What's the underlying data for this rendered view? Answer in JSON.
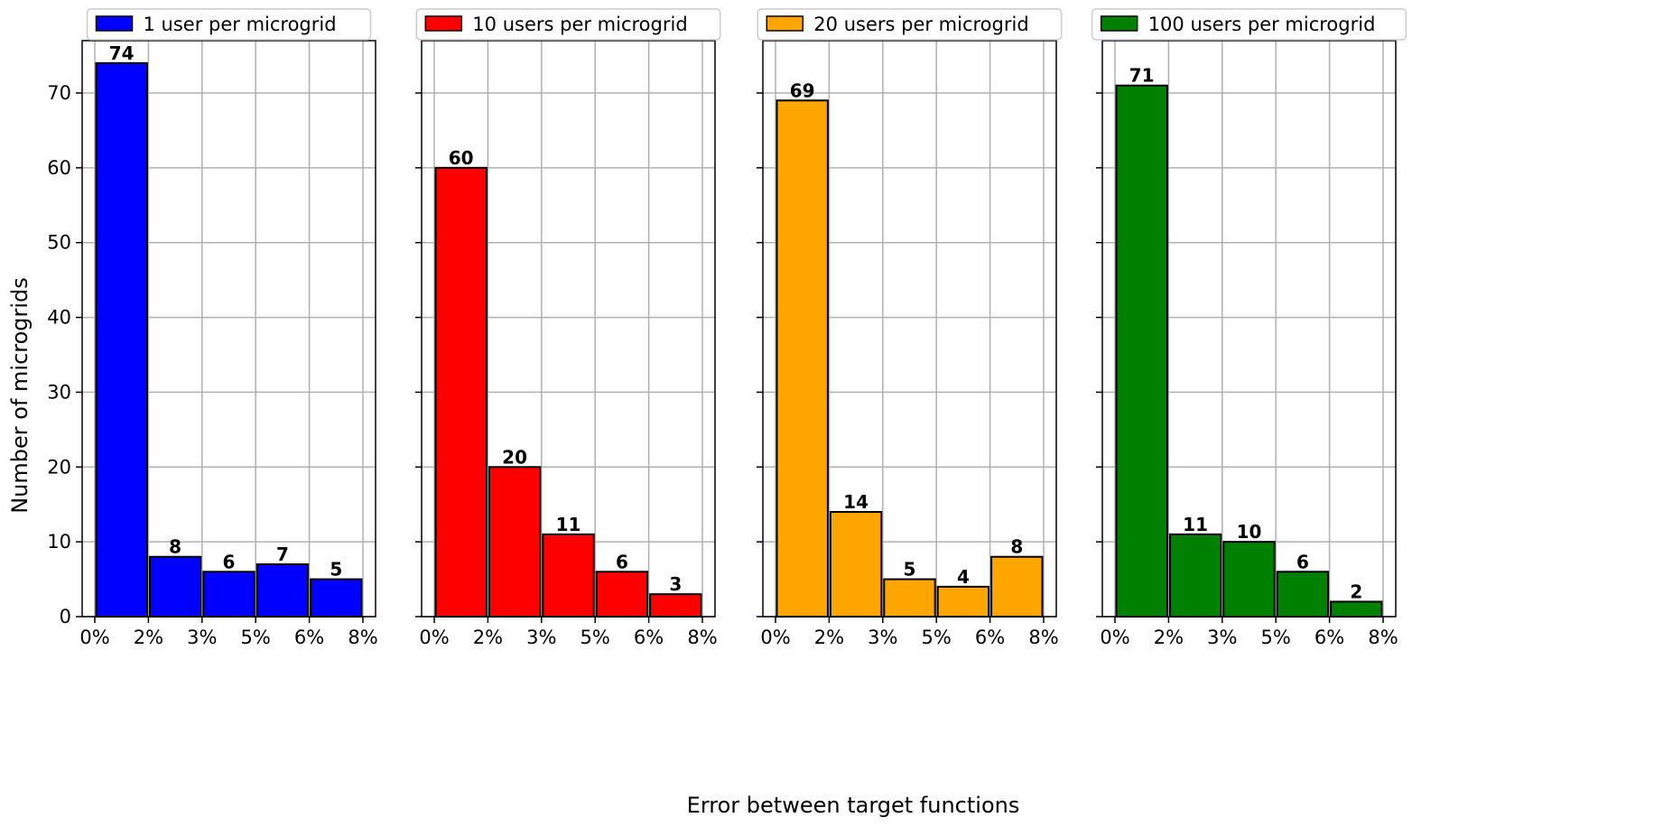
{
  "chart_data": [
    {
      "type": "bar",
      "legend": "1 user per microgrid",
      "color": "#0000FF",
      "categories": [
        "0-1.6%",
        "1.6-3.2%",
        "3.2-4.8%",
        "4.8-6.4%",
        "6.4-8%"
      ],
      "values": [
        74,
        8,
        6,
        7,
        5
      ],
      "xticks": [
        "0%",
        "2%",
        "3%",
        "5%",
        "6%",
        "8%"
      ],
      "ylim": [
        0,
        77
      ],
      "grid": true,
      "legend_position": "top-center"
    },
    {
      "type": "bar",
      "legend": "10 users per microgrid",
      "color": "#FF0000",
      "categories": [
        "0-1.6%",
        "1.6-3.2%",
        "3.2-4.8%",
        "4.8-6.4%",
        "6.4-8%"
      ],
      "values": [
        60,
        20,
        11,
        6,
        3
      ],
      "xticks": [
        "0%",
        "2%",
        "3%",
        "5%",
        "6%",
        "8%"
      ],
      "ylim": [
        0,
        77
      ],
      "grid": true,
      "legend_position": "top-center"
    },
    {
      "type": "bar",
      "legend": "20 users per microgrid",
      "color": "#FFA500",
      "categories": [
        "0-1.6%",
        "1.6-3.2%",
        "3.2-4.8%",
        "4.8-6.4%",
        "6.4-8%"
      ],
      "values": [
        69,
        14,
        5,
        4,
        8
      ],
      "xticks": [
        "0%",
        "2%",
        "3%",
        "5%",
        "6%",
        "8%"
      ],
      "ylim": [
        0,
        77
      ],
      "grid": true,
      "legend_position": "top-center"
    },
    {
      "type": "bar",
      "legend": "100 users per microgrid",
      "color": "#008000",
      "categories": [
        "0-1.6%",
        "1.6-3.2%",
        "3.2-4.8%",
        "4.8-6.4%",
        "6.4-8%"
      ],
      "values": [
        71,
        11,
        10,
        6,
        2
      ],
      "xticks": [
        "0%",
        "2%",
        "3%",
        "5%",
        "6%",
        "8%"
      ],
      "ylim": [
        0,
        77
      ],
      "grid": true,
      "legend_position": "top-center"
    }
  ],
  "yticks": [
    0,
    10,
    20,
    30,
    40,
    50,
    60,
    70
  ],
  "ylabel": "Number of microgrids",
  "xlabel": "Error between target functions"
}
